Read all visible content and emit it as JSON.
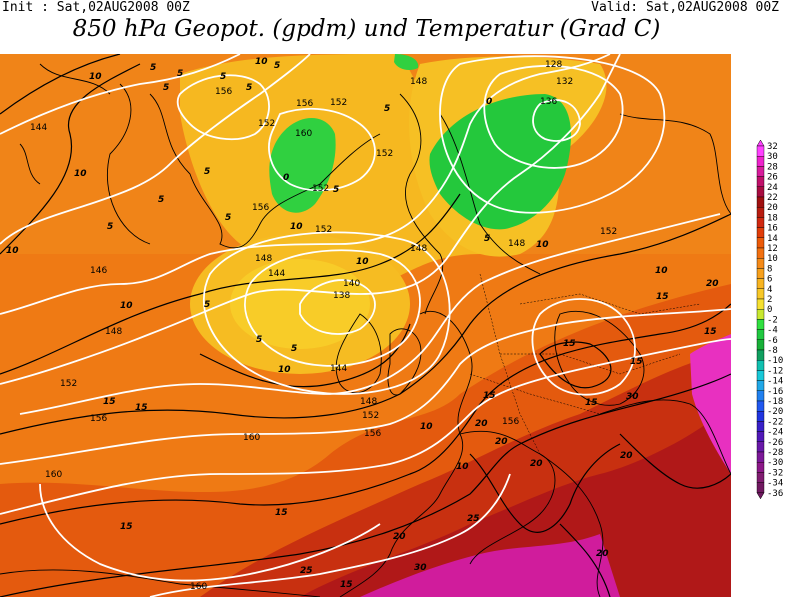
{
  "header": {
    "init": "Init : Sat,02AUG2008 00Z",
    "valid": "Valid: Sat,02AUG2008 00Z",
    "title": "850 hPa Geopot. (gpdm) und Temperatur (Grad C)"
  },
  "legend": {
    "labels": [
      "32",
      "30",
      "28",
      "26",
      "24",
      "22",
      "20",
      "18",
      "16",
      "14",
      "12",
      "10",
      "8",
      "6",
      "4",
      "2",
      "0",
      "-2",
      "-4",
      "-6",
      "-8",
      "-10",
      "-12",
      "-14",
      "-16",
      "-18",
      "-20",
      "-22",
      "-24",
      "-26",
      "-28",
      "-30",
      "-32",
      "-34",
      "-36"
    ],
    "colors": [
      "#ff40ff",
      "#ee22cc",
      "#d81c9c",
      "#c0106a",
      "#a80c40",
      "#a01010",
      "#b81c10",
      "#d02810",
      "#e03c08",
      "#ec5a08",
      "#f27010",
      "#f58a18",
      "#f7a01c",
      "#f8b420",
      "#f8c828",
      "#f6e030",
      "#c8e830",
      "#30e040",
      "#20c840",
      "#18b038",
      "#10a060",
      "#10c0b0",
      "#18c8d8",
      "#20a8e8",
      "#2080f0",
      "#2058f0",
      "#2034e0",
      "#3820c8",
      "#5018b8",
      "#6818a8",
      "#7c1898",
      "#8c1888",
      "#801c70",
      "#701860"
    ]
  },
  "map": {
    "geopotential_labels": [
      "128",
      "132",
      "136",
      "138",
      "140",
      "144",
      "144",
      "144",
      "146",
      "148",
      "148",
      "148",
      "148",
      "148",
      "148",
      "152",
      "152",
      "152",
      "152",
      "152",
      "152",
      "152",
      "152",
      "156",
      "156",
      "156",
      "156",
      "156",
      "156",
      "160",
      "160",
      "160",
      "160"
    ],
    "temperature_labels": [
      "0",
      "0",
      "5",
      "5",
      "5",
      "5",
      "5",
      "5",
      "5",
      "5",
      "5",
      "5",
      "5",
      "5",
      "5",
      "5",
      "5",
      "5",
      "10",
      "10",
      "10",
      "10",
      "10",
      "10",
      "10",
      "10",
      "10",
      "10",
      "10",
      "10",
      "15",
      "15",
      "15",
      "15",
      "15",
      "15",
      "15",
      "15",
      "15",
      "15",
      "15",
      "20",
      "20",
      "20",
      "20",
      "20",
      "20",
      "20",
      "25",
      "25",
      "30",
      "30"
    ]
  }
}
